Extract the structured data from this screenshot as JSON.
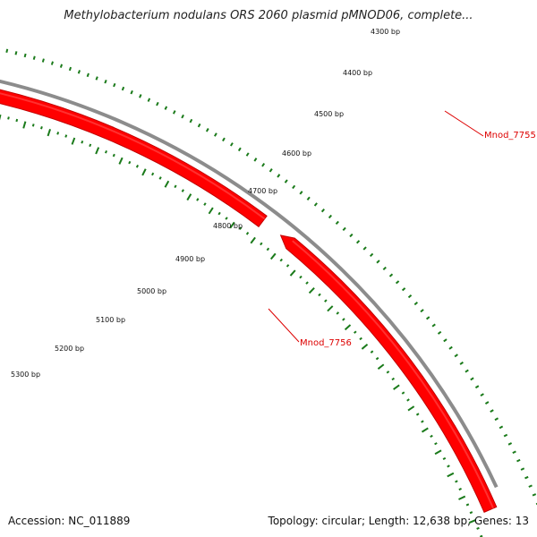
{
  "title": "Methylobacterium nodulans ORS 2060 plasmid pMNOD06, complete...",
  "footer": {
    "accession": "Accession: NC_011889",
    "summary": "Topology: circular; Length: 12,638 bp; Genes: 13"
  },
  "colors": {
    "gene_fill": "#ff0000",
    "gene_edge": "#c00000",
    "backbone": "#8c8c8c",
    "tick": "#1a7a1a",
    "gene_label": "#dd0000"
  },
  "ruler": [
    {
      "bp": 4300,
      "label": "4300 bp"
    },
    {
      "bp": 4400,
      "label": "4400 bp"
    },
    {
      "bp": 4500,
      "label": "4500 bp"
    },
    {
      "bp": 4600,
      "label": "4600 bp"
    },
    {
      "bp": 4700,
      "label": "4700 bp"
    },
    {
      "bp": 4800,
      "label": "4800 bp"
    },
    {
      "bp": 4900,
      "label": "4900 bp"
    },
    {
      "bp": 5000,
      "label": "5000 bp"
    },
    {
      "bp": 5100,
      "label": "5100 bp"
    },
    {
      "bp": 5200,
      "label": "5200 bp"
    },
    {
      "bp": 5300,
      "label": "5300 bp"
    }
  ],
  "genes": [
    {
      "name": "Mnod_7755"
    },
    {
      "name": "Mnod_7756"
    }
  ]
}
